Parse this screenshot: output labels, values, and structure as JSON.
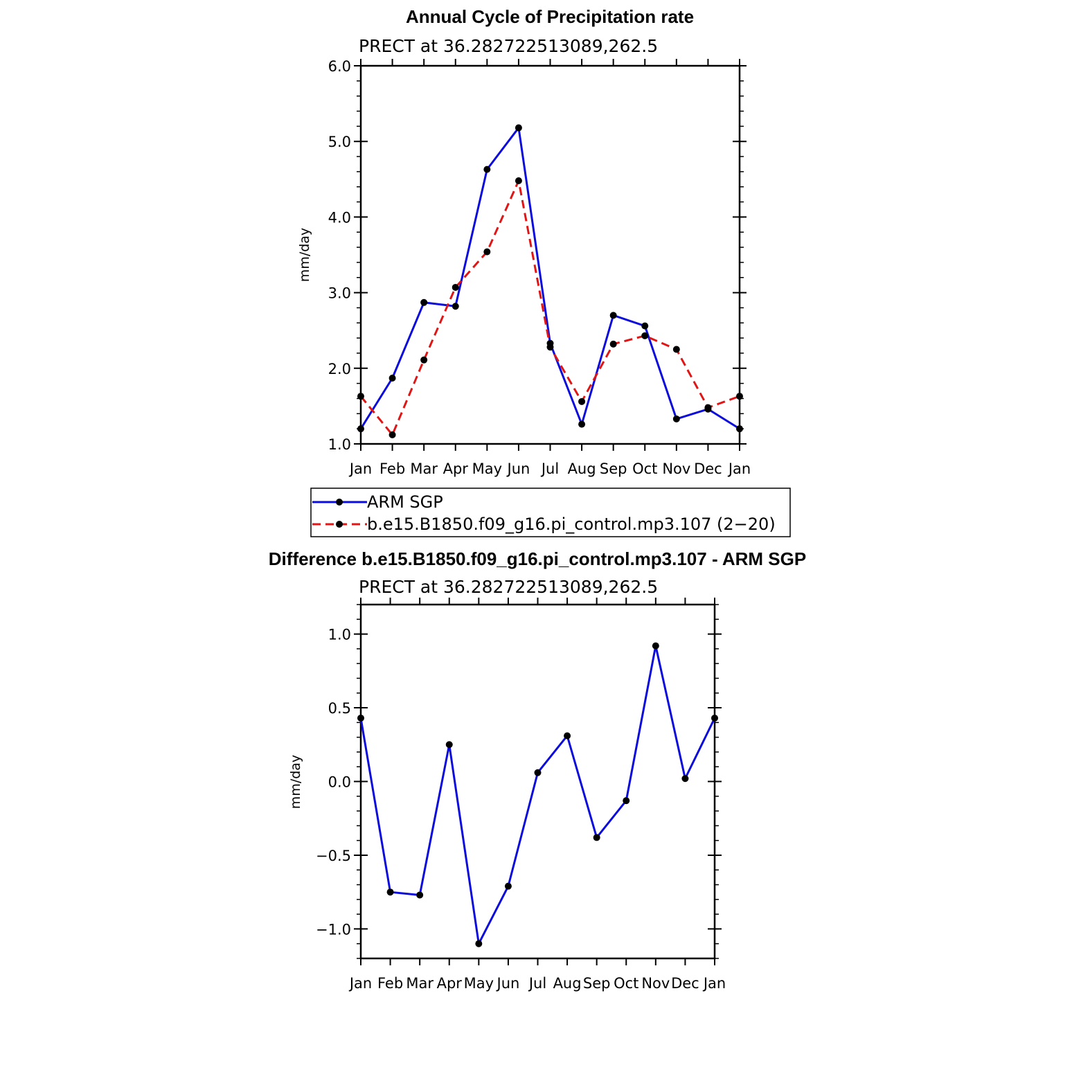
{
  "colors": {
    "obs": "#0b0bdc",
    "model": "#e01616",
    "marker": "#000000",
    "axis": "#000000"
  },
  "chart_data": [
    {
      "type": "line",
      "title": "Annual Cycle of Precipitation rate",
      "subtitle": "PRECT at 36.282722513089,262.5",
      "ylabel": "mm/day",
      "ylim": [
        1.0,
        6.0
      ],
      "yticks": [
        1.0,
        2.0,
        3.0,
        4.0,
        5.0,
        6.0
      ],
      "ytick_labels": [
        "1.0",
        "2.0",
        "3.0",
        "4.0",
        "5.0",
        "6.0"
      ],
      "categories": [
        "Jan",
        "Feb",
        "Mar",
        "Apr",
        "May",
        "Jun",
        "Jul",
        "Aug",
        "Sep",
        "Oct",
        "Nov",
        "Dec",
        "Jan"
      ],
      "series": [
        {
          "name": "ARM SGP",
          "style": "solid",
          "values": [
            1.2,
            1.87,
            2.87,
            2.82,
            4.63,
            5.18,
            2.33,
            1.26,
            2.7,
            2.56,
            1.33,
            1.46,
            1.2
          ]
        },
        {
          "name": "b.e15.B1850.f09_g16.pi_control.mp3.107 (2−20)",
          "style": "dashed",
          "values": [
            1.63,
            1.12,
            2.11,
            3.07,
            3.54,
            4.48,
            2.28,
            1.56,
            2.32,
            2.43,
            2.25,
            1.48,
            1.63
          ]
        }
      ],
      "legend": {
        "placement": "below"
      }
    },
    {
      "type": "line",
      "title": "Difference b.e15.B1850.f09_g16.pi_control.mp3.107 - ARM SGP",
      "subtitle": "PRECT at 36.282722513089,262.5",
      "ylabel": "mm/day",
      "ylim": [
        -1.2,
        1.2
      ],
      "yticks": [
        -1.0,
        -0.5,
        0.0,
        0.5,
        1.0
      ],
      "ytick_labels": [
        "−1.0",
        "−0.5",
        "0.0",
        "0.5",
        "1.0"
      ],
      "categories": [
        "Jan",
        "Feb",
        "Mar",
        "Apr",
        "May",
        "Jun",
        "Jul",
        "Aug",
        "Sep",
        "Oct",
        "Nov",
        "Dec",
        "Jan"
      ],
      "series": [
        {
          "name": "Difference",
          "style": "solid",
          "values": [
            0.43,
            -0.75,
            -0.77,
            0.25,
            -1.1,
            -0.71,
            0.06,
            0.31,
            -0.38,
            -0.13,
            0.92,
            0.02,
            0.43
          ]
        }
      ]
    }
  ]
}
